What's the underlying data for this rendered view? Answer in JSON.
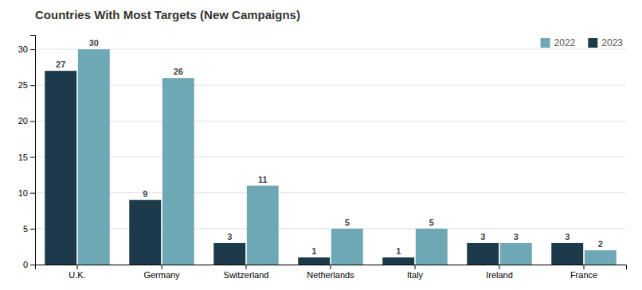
{
  "chart_data": {
    "type": "bar",
    "title": "Countries With Most Targets (New Campaigns)",
    "categories": [
      "U.K.",
      "Germany",
      "Switzerland",
      "Netherlands",
      "Italy",
      "Ireland",
      "France"
    ],
    "series": [
      {
        "name": "2023",
        "color": "#1c3a4a",
        "values": [
          27,
          9,
          3,
          1,
          1,
          3,
          3
        ]
      },
      {
        "name": "2022",
        "color": "#6ea8b4",
        "values": [
          30,
          26,
          11,
          5,
          5,
          3,
          2
        ]
      }
    ],
    "ylim": [
      0,
      32
    ],
    "yticks": [
      0,
      5,
      10,
      15,
      20,
      25,
      30
    ],
    "grid": true,
    "legend": "upper right",
    "data_labels": true
  }
}
